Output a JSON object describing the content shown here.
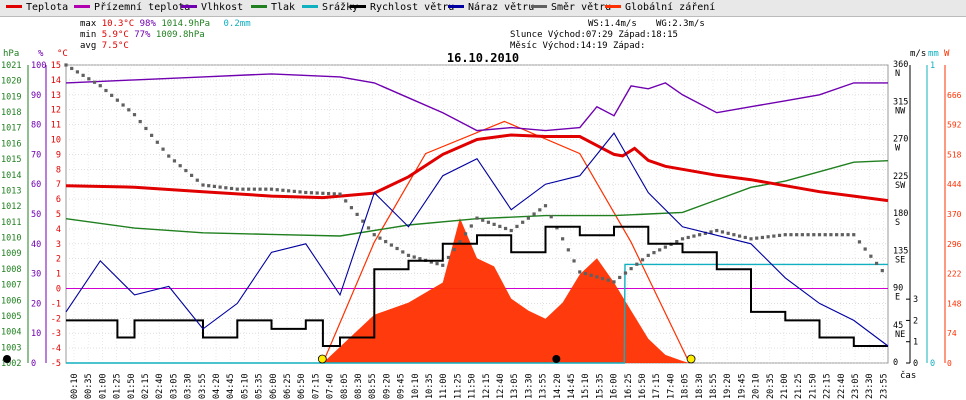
{
  "legend": [
    {
      "label": "Teplota",
      "color": "#e00000"
    },
    {
      "label": "Přízemní teplota",
      "color": "#b000b0"
    },
    {
      "label": "Vlhkost",
      "color": "#7000b0"
    },
    {
      "label": "Tlak",
      "color": "#208020"
    },
    {
      "label": "Srážky",
      "color": "#10b0c0"
    },
    {
      "label": "Rychlost větru",
      "color": "#000000"
    },
    {
      "label": "Náraz větru",
      "color": "#0000a0"
    },
    {
      "label": "Směr větru",
      "color": "#606060"
    },
    {
      "label": "Globální záření",
      "color": "#ff3000"
    }
  ],
  "stats": {
    "max": {
      "label": "max",
      "temp": "10.3°C",
      "hum": "98%",
      "press": "1014.9hPa",
      "rain": "0.2mm"
    },
    "min": {
      "label": "min",
      "temp": "5.9°C",
      "hum": "77%",
      "press": "1009.8hPa"
    },
    "avg": {
      "label": "avg",
      "temp": "7.5°C"
    },
    "ws": "WS:1.4m/s",
    "wg": "WG:2.3m/s",
    "sun": "Slunce Východ:07:29  Západ:18:15",
    "moon": "Měsíc  Východ:14:19  Západ:"
  },
  "chart_data": {
    "type": "line",
    "title": "16.10.2010",
    "xlabel": "čas",
    "x_ticks": [
      "00:10",
      "00:35",
      "01:00",
      "01:25",
      "01:50",
      "02:15",
      "02:40",
      "03:05",
      "03:30",
      "03:55",
      "04:20",
      "04:45",
      "05:10",
      "05:35",
      "06:00",
      "06:25",
      "06:50",
      "07:15",
      "07:40",
      "08:05",
      "08:30",
      "08:55",
      "09:20",
      "09:45",
      "10:10",
      "10:35",
      "11:00",
      "11:25",
      "11:50",
      "12:15",
      "12:40",
      "13:05",
      "13:30",
      "13:55",
      "14:20",
      "14:45",
      "15:10",
      "15:35",
      "16:00",
      "16:25",
      "16:50",
      "17:15",
      "17:40",
      "18:05",
      "18:30",
      "18:55",
      "19:20",
      "19:45",
      "20:10",
      "20:35",
      "21:00",
      "21:25",
      "21:50",
      "22:15",
      "22:40",
      "23:05",
      "23:30",
      "23:55"
    ],
    "axes": {
      "hPa": {
        "label": "hPa",
        "color": "#208020",
        "ticks": [
          "1021",
          "1020",
          "1019",
          "1018",
          "1017",
          "1016",
          "1015",
          "1014",
          "1013",
          "1012",
          "1011",
          "1010",
          "1009",
          "1008",
          "1007",
          "1006",
          "1005",
          "1004",
          "1003",
          "1002"
        ]
      },
      "percent": {
        "label": "%",
        "color": "#7000b0",
        "ticks": [
          "100",
          "90",
          "80",
          "70",
          "60",
          "50",
          "40",
          "30",
          "20",
          "10",
          "0"
        ]
      },
      "celsius": {
        "label": "°C",
        "color": "#e00000",
        "ticks": [
          "15",
          "14",
          "13",
          "12",
          "11",
          "10",
          "9",
          "8",
          "7",
          "6",
          "5",
          "4",
          "3",
          "2",
          "1",
          "0",
          "-1",
          "-2",
          "-3",
          "-4",
          "-5"
        ]
      },
      "direction": {
        "label": "°",
        "ticks": [
          "360",
          "315",
          "270",
          "225",
          "180",
          "135",
          "90",
          "45",
          "0"
        ],
        "compass": [
          "N",
          "NW",
          "W",
          "SW",
          "S",
          "SE",
          "E",
          "NE",
          ""
        ]
      },
      "ms": {
        "label": "m/s",
        "ticks": [
          "3",
          "2",
          "1",
          "0"
        ]
      },
      "mm": {
        "label": "mm",
        "color": "#10b0c0",
        "ticks": [
          "1",
          "0"
        ]
      },
      "W": {
        "label": "W",
        "color": "#ff3000",
        "ticks": [
          "666",
          "592",
          "518",
          "444",
          "370",
          "296",
          "222",
          "148",
          "74",
          "0"
        ]
      }
    },
    "series": [
      {
        "name": "Teplota",
        "unit": "°C",
        "t": [
          0,
          2,
          4,
          6,
          7.5,
          9,
          10,
          11,
          12,
          13,
          14,
          15,
          16,
          16.25,
          16.6,
          17,
          17.5,
          18,
          19,
          20,
          21,
          22,
          23,
          24
        ],
        "values": [
          6.9,
          6.8,
          6.5,
          6.2,
          6.1,
          6.4,
          7.5,
          9,
          10,
          10.3,
          10.2,
          10.2,
          9,
          8.9,
          9.4,
          8.6,
          8.2,
          8,
          7.6,
          7.3,
          6.9,
          6.5,
          6.2,
          5.9
        ]
      },
      {
        "name": "Vlhkost",
        "unit": "%",
        "t": [
          0,
          2,
          4,
          6,
          8,
          9,
          10,
          11,
          12,
          13,
          14,
          15,
          15.5,
          16,
          16.5,
          17,
          17.5,
          18,
          19,
          20,
          21,
          22,
          23,
          24
        ],
        "values": [
          94,
          95,
          96,
          97,
          96,
          94,
          89,
          84,
          78,
          79,
          78,
          79,
          86,
          83,
          93,
          92,
          94,
          90,
          84,
          86,
          88,
          90,
          94,
          94
        ]
      },
      {
        "name": "Tlak",
        "unit": "hPa",
        "t": [
          0,
          2,
          4,
          6,
          8,
          10,
          12,
          14,
          16,
          17,
          18,
          19,
          20,
          21,
          22,
          23,
          24
        ],
        "values": [
          1011.2,
          1010.6,
          1010.3,
          1010.2,
          1010.1,
          1010.8,
          1011.2,
          1011.4,
          1011.4,
          1011.5,
          1011.6,
          1012.4,
          1013.2,
          1013.6,
          1014.2,
          1014.8,
          1014.9
        ]
      },
      {
        "name": "Srážky",
        "unit": "mm",
        "t": [
          0,
          16.3,
          16.32,
          24
        ],
        "values": [
          0,
          0,
          0.2,
          0.2
        ]
      },
      {
        "name": "Rychlost větru",
        "unit": "m/s",
        "t": [
          0,
          1,
          1.5,
          2,
          3,
          4,
          5,
          6,
          7,
          7.5,
          8,
          9,
          10,
          11,
          12,
          13,
          14,
          15,
          16,
          17,
          18,
          19,
          20,
          21,
          22,
          23,
          24
        ],
        "values": [
          0.5,
          0.5,
          0.3,
          0.5,
          0.5,
          0.3,
          0.5,
          0.4,
          0.5,
          0.2,
          0.3,
          1.1,
          1.2,
          1.4,
          1.5,
          1.3,
          1.6,
          1.5,
          1.6,
          1.4,
          1.3,
          1.1,
          0.6,
          0.5,
          0.3,
          0.2,
          0.2
        ]
      },
      {
        "name": "Náraz větru",
        "unit": "m/s",
        "t": [
          0,
          1,
          2,
          3,
          4,
          5,
          6,
          7,
          8,
          9,
          10,
          11,
          12,
          13,
          14,
          15,
          16,
          17,
          18,
          19,
          20,
          21,
          22,
          23,
          24
        ],
        "values": [
          0.6,
          1.2,
          0.8,
          0.9,
          0.4,
          0.7,
          1.3,
          1.4,
          0.8,
          2.0,
          1.6,
          2.2,
          2.4,
          1.8,
          2.1,
          2.2,
          2.7,
          2.0,
          1.6,
          1.5,
          1.4,
          1.0,
          0.7,
          0.5,
          0.2
        ]
      },
      {
        "name": "Směr větru",
        "unit": "°",
        "t": [
          0,
          1,
          2,
          3,
          4,
          5,
          6,
          7,
          8,
          9,
          10,
          11,
          12,
          13,
          14,
          15,
          16,
          17,
          18,
          19,
          20,
          21,
          22,
          23,
          24
        ],
        "values": [
          360,
          335,
          300,
          250,
          215,
          210,
          210,
          206,
          204,
          155,
          130,
          118,
          175,
          160,
          190,
          110,
          98,
          130,
          150,
          160,
          150,
          155,
          155,
          155,
          103
        ]
      },
      {
        "name": "Globální záření",
        "unit": "W",
        "t": [
          7.5,
          8,
          9,
          10,
          11,
          11.5,
          12,
          12.5,
          13,
          13.5,
          14,
          14.5,
          15,
          15.5,
          16,
          16.5,
          17,
          17.5,
          18,
          18.2
        ],
        "values": [
          0,
          40,
          120,
          150,
          200,
          360,
          260,
          240,
          160,
          130,
          110,
          150,
          220,
          260,
          200,
          130,
          60,
          20,
          5,
          0
        ]
      },
      {
        "name": "Globální záření (teoretické)",
        "unit": "W",
        "t": [
          7.5,
          9,
          10.5,
          12.8,
          15,
          16.5,
          18.2
        ],
        "values": [
          0,
          300,
          520,
          600,
          520,
          300,
          0
        ]
      }
    ],
    "markers": {
      "sunrise": "07:29",
      "sunset": "18:15",
      "moonrise": "14:19"
    },
    "grid": true
  }
}
